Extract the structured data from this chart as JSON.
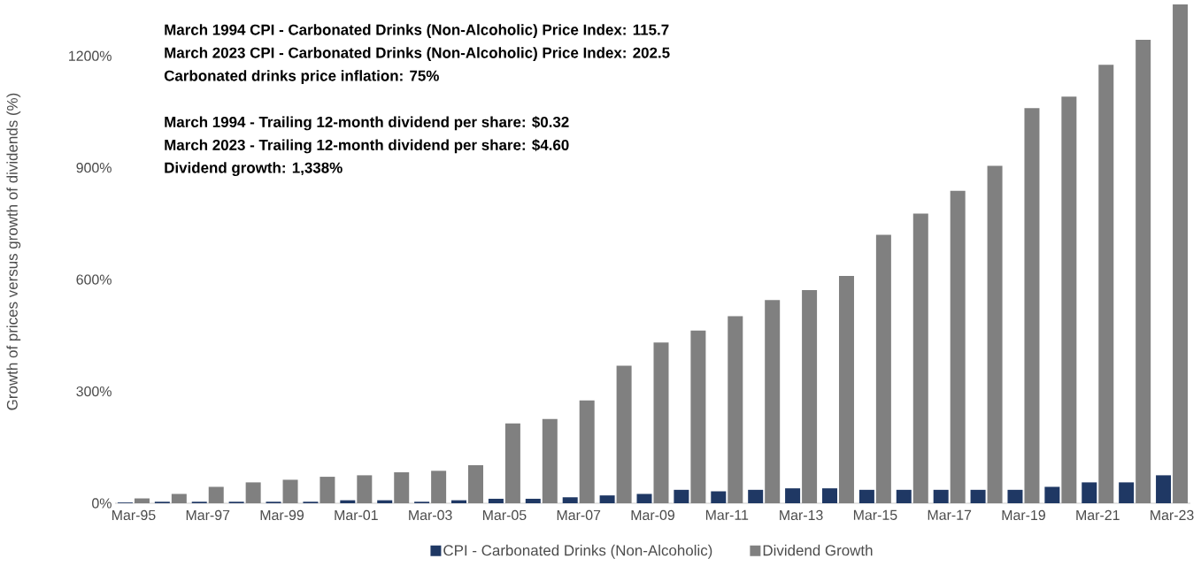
{
  "chart_data": {
    "type": "bar",
    "ylabel": "Growth of prices versus growth of dividends (%)",
    "categories": [
      "Mar-95",
      null,
      "Mar-97",
      null,
      "Mar-99",
      null,
      "Mar-01",
      null,
      "Mar-03",
      null,
      "Mar-05",
      null,
      "Mar-07",
      null,
      "Mar-09",
      null,
      "Mar-11",
      null,
      "Mar-13",
      null,
      "Mar-15",
      null,
      "Mar-17",
      null,
      "Mar-19",
      null,
      "Mar-21",
      null,
      "Mar-23"
    ],
    "series": [
      {
        "name": "CPI - Carbonated Drinks (Non-Alcoholic)",
        "color": "#1f3864",
        "values": [
          2,
          4,
          4,
          4,
          4,
          4,
          8,
          8,
          4,
          8,
          12,
          12,
          16,
          21,
          25,
          36,
          32,
          36,
          40,
          40,
          36,
          36,
          36,
          36,
          36,
          44,
          56,
          56,
          75
        ]
      },
      {
        "name": "Dividend Growth",
        "color": "#808080",
        "values": [
          13,
          25,
          44,
          56,
          63,
          71,
          75,
          83,
          87,
          102,
          214,
          226,
          276,
          369,
          431,
          463,
          502,
          545,
          572,
          610,
          720,
          777,
          838,
          905,
          1060,
          1091,
          1176,
          1243,
          1338
        ]
      }
    ],
    "ylim": [
      0,
      1350
    ],
    "yticks": [
      {
        "value": 0,
        "label": "0%"
      },
      {
        "value": 300,
        "label": "300%"
      },
      {
        "value": 600,
        "label": "600%"
      },
      {
        "value": 900,
        "label": "900%"
      },
      {
        "value": 1200,
        "label": "1200%"
      }
    ],
    "legend": "bottom",
    "annotations": [
      "March 1994 CPI - Carbonated Drinks (Non-Alcoholic)  Price Index: 115.7",
      "March 2023 CPI - Carbonated Drinks (Non-Alcoholic)  Price Index: 202.5",
      "Carbonated drinks price inflation: 75%",
      "March 1994 - Trailing 12-month dividend per share: $0.32",
      "March 2023 - Trailing 12-month dividend per share: $4.60",
      "Dividend growth: 1,338%"
    ]
  }
}
